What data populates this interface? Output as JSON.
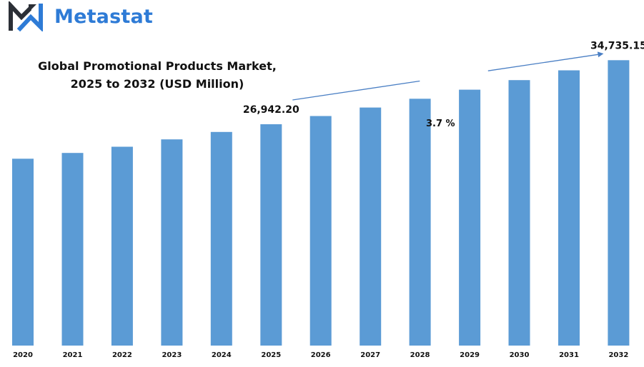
{
  "brand": {
    "name": "Metastat",
    "logo_icon": "m-arrow-logo",
    "color": "#2e7bd6"
  },
  "chart_data": {
    "type": "bar",
    "title": "Global Promotional Products Market, 2025 to 2032 (USD Million)",
    "title_lines": [
      "Global Promotional Products Market,",
      "2025 to 2032 (USD Million)"
    ],
    "xlabel": "",
    "ylabel": "",
    "grid": false,
    "categories": [
      "2020",
      "2021",
      "2022",
      "2023",
      "2024",
      "2025",
      "2026",
      "2027",
      "2028",
      "2029",
      "2030",
      "2031",
      "2032"
    ],
    "values": [
      22740,
      23450,
      24200,
      25100,
      26000,
      26942.2,
      27940,
      28970,
      30040,
      31150,
      32310,
      33500,
      34735.15
    ],
    "ylim": [
      0,
      36500
    ],
    "bar_color": "#5b9bd5",
    "annotations": [
      {
        "category": "2025",
        "text": "26,942.20"
      },
      {
        "category": "2032",
        "text": "34,735.15"
      }
    ],
    "cagr_label": "3.7  %",
    "trend_line_color": "#4a7fc4"
  }
}
